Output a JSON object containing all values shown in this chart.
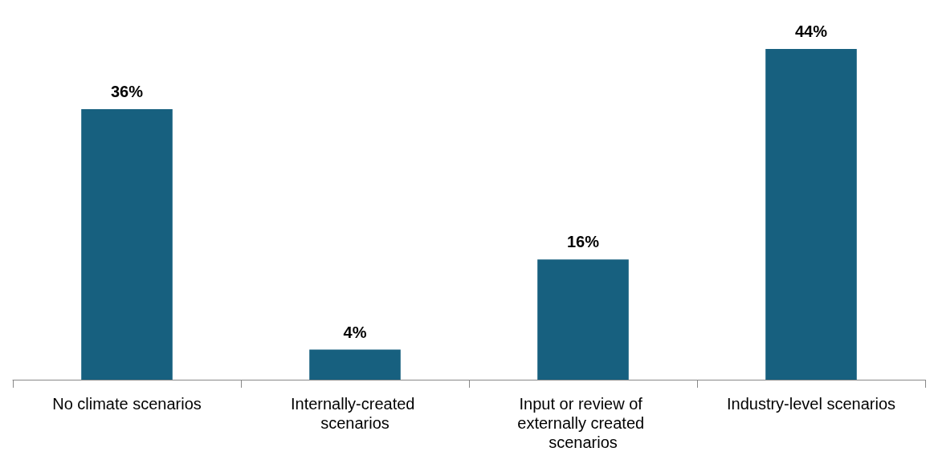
{
  "chart_data": {
    "type": "bar",
    "categories": [
      "No climate scenarios",
      "Internally-created scenarios",
      "Input or review of externally created scenarios",
      "Industry-level scenarios"
    ],
    "values": [
      36,
      4,
      16,
      44
    ],
    "value_labels": [
      "36%",
      "4%",
      "16%",
      "44%"
    ],
    "color": "#17607f"
  }
}
